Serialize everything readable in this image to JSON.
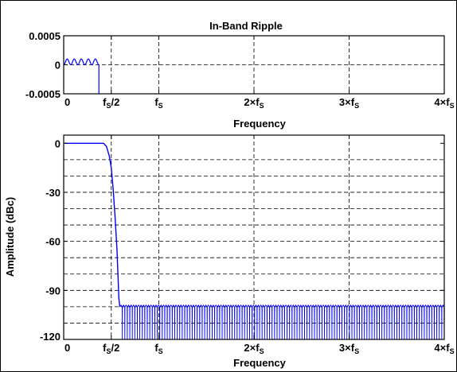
{
  "chart_data": [
    {
      "type": "line",
      "title": "In-Band Ripple",
      "xlabel": "Frequency",
      "ylabel": "",
      "xlim": [
        0,
        4
      ],
      "ylim": [
        -0.0005,
        0.0005
      ],
      "x_ticks": [
        {
          "value": 0,
          "label": "0"
        },
        {
          "value": 0.5,
          "label": "fS/2"
        },
        {
          "value": 1,
          "label": "fS"
        },
        {
          "value": 2,
          "label": "2×fS"
        },
        {
          "value": 3,
          "label": "3×fS"
        },
        {
          "value": 4,
          "label": "4×fS"
        }
      ],
      "y_ticks": [
        {
          "value": 0.0005,
          "label": "0.0005"
        },
        {
          "value": 0,
          "label": "0"
        },
        {
          "value": -0.0005,
          "label": "-0.0005"
        }
      ],
      "grid": "dashed at x tick positions",
      "series": [
        {
          "color": "#0000ff",
          "passband_edge": 0.37,
          "ripple_amplitude": 0.0001,
          "ripple_cycles": 5,
          "x": [
            0,
            0.037,
            0.074,
            0.111,
            0.148,
            0.185,
            0.222,
            0.259,
            0.296,
            0.333,
            0.37,
            0.37
          ],
          "y": [
            0,
            0.0001,
            0,
            0.0001,
            0,
            0.0001,
            0,
            0.0001,
            0,
            0.0001,
            0,
            -0.0005
          ]
        }
      ]
    },
    {
      "type": "line",
      "title": "",
      "xlabel": "Frequency",
      "ylabel": "Amplitude (dBc)",
      "xlim": [
        0,
        4
      ],
      "ylim": [
        -120,
        5
      ],
      "x_ticks": [
        {
          "value": 0,
          "label": "0"
        },
        {
          "value": 0.5,
          "label": "fS/2"
        },
        {
          "value": 1,
          "label": "fS"
        },
        {
          "value": 2,
          "label": "2×fS"
        },
        {
          "value": 3,
          "label": "3×fS"
        },
        {
          "value": 4,
          "label": "4×fS"
        }
      ],
      "y_ticks": [
        {
          "value": 0,
          "label": "0"
        },
        {
          "value": -30,
          "label": "-30"
        },
        {
          "value": -60,
          "label": "-60"
        },
        {
          "value": -90,
          "label": "-90"
        },
        {
          "value": -120,
          "label": "-120"
        }
      ],
      "grid": "dashed, x at tick positions, y every 10 dB",
      "series": [
        {
          "color": "#0000ff",
          "passband": {
            "x": [
              0,
              0.42
            ],
            "y": 0
          },
          "transition": {
            "x": [
              0.42,
              0.45,
              0.48,
              0.5,
              0.52,
              0.54,
              0.56,
              0.57,
              0.58,
              0.59
            ],
            "y": [
              0,
              -2,
              -8,
              -15,
              -28,
              -45,
              -65,
              -80,
              -95,
              -100
            ]
          },
          "stopband": {
            "start": 0.59,
            "end": 4,
            "max_level": -99,
            "null_floor": -120,
            "lobes_per_fs": 38
          }
        }
      ]
    }
  ]
}
